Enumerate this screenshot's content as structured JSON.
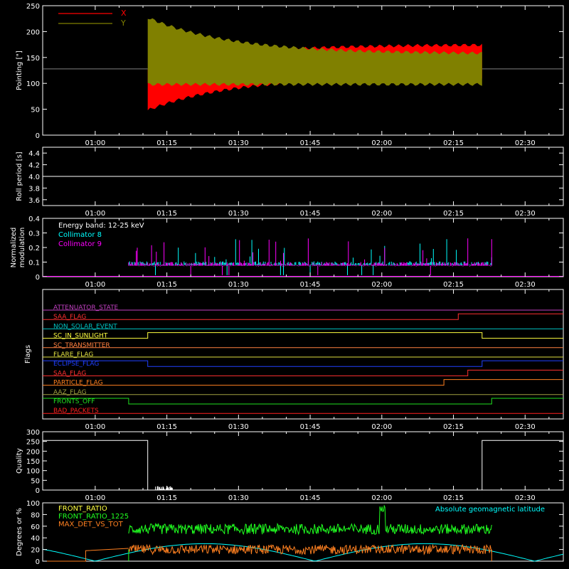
{
  "time_axis": {
    "tick_labels": [
      "01:00",
      "01:15",
      "01:30",
      "01:45",
      "02:00",
      "02:15",
      "02:30"
    ],
    "tick_minutes": [
      60,
      75,
      90,
      105,
      120,
      135,
      150
    ],
    "range_minutes": [
      49,
      158
    ]
  },
  "chart_data": [
    {
      "type": "line",
      "name": "pointing",
      "ylabel": "Pointing [\"]",
      "ylim": [
        0,
        250
      ],
      "yticks": [
        0,
        50,
        100,
        150,
        200,
        250
      ],
      "legend": [
        "X",
        "Y"
      ],
      "legend_colors": [
        "#ff0000",
        "#808000"
      ],
      "baseline": 128,
      "active_minutes": [
        71,
        141
      ],
      "series": [
        {
          "name": "X",
          "color": "#ff0000",
          "envelope_low_start": 45,
          "envelope_low_end": 110,
          "envelope_high_start": 130,
          "envelope_high_end": 178
        },
        {
          "name": "Y",
          "color": "#808000",
          "envelope_low_start": 95,
          "envelope_low_end": 95,
          "envelope_high_start": 230,
          "envelope_high_end": 160
        }
      ]
    },
    {
      "type": "line",
      "name": "roll-period",
      "ylabel": "Roll period [s]",
      "ylim": [
        3.5,
        4.5
      ],
      "yticks": [
        3.6,
        3.8,
        4.0,
        4.2,
        4.4
      ],
      "ytick_labels": [
        "3.6",
        "3.8",
        "4.0",
        "4.2",
        "4.4"
      ],
      "value": 4.0,
      "color": "#ffffff"
    },
    {
      "type": "bar",
      "name": "modulation",
      "ylabel_lines": [
        "Normalized",
        "modulation"
      ],
      "ylim": [
        0,
        0.4
      ],
      "yticks": [
        0,
        0.1,
        0.2,
        0.3,
        0.4
      ],
      "ytick_labels": [
        "0",
        "0.1",
        "0.2",
        "0.3",
        "0.4"
      ],
      "annotation": "Energy band: 12-25 keV",
      "active_minutes": [
        67,
        143
      ],
      "series": [
        {
          "name": "Collimator 8",
          "color": "#00ffff",
          "base": 0.09
        },
        {
          "name": "Collimator 9",
          "color": "#ff00ff",
          "base": 0.085
        }
      ]
    },
    {
      "type": "line",
      "name": "flags",
      "ylabel": "Flags",
      "series": [
        {
          "name": "ATTENUATOR_STATE",
          "color": "#c040c0",
          "steps": []
        },
        {
          "name": "SAA_FLAG",
          "color": "#ff3030",
          "steps": [
            [
              49,
              0
            ],
            [
              136,
              1
            ]
          ]
        },
        {
          "name": "NON_SOLAR_EVENT",
          "color": "#00c0c0",
          "steps": []
        },
        {
          "name": "SC_IN_SUNLIGHT",
          "color": "#ffff40",
          "steps": [
            [
              49,
              0
            ],
            [
              71,
              1
            ],
            [
              141,
              0
            ]
          ]
        },
        {
          "name": "SC_TRANSMITTER",
          "color": "#ff8040",
          "steps": []
        },
        {
          "name": "FLARE_FLAG",
          "color": "#e0e040",
          "steps": []
        },
        {
          "name": "ECLIPSE_FLAG",
          "color": "#2040ff",
          "steps": [
            [
              49,
              1
            ],
            [
              71,
              0
            ],
            [
              141,
              1
            ]
          ]
        },
        {
          "name": "SAA_FLAG",
          "color": "#ff3030",
          "steps": [
            [
              49,
              0
            ],
            [
              138,
              1
            ]
          ]
        },
        {
          "name": "PARTICLE_FLAG",
          "color": "#ff8020",
          "steps": [
            [
              49,
              0
            ],
            [
              133,
              1
            ]
          ]
        },
        {
          "name": "AAZ_FLAG",
          "color": "#a0a040",
          "steps": []
        },
        {
          "name": "FRONTS_OFF",
          "color": "#20e020",
          "steps": [
            [
              49,
              1
            ],
            [
              67,
              0
            ],
            [
              143,
              1
            ]
          ]
        },
        {
          "name": "BAD_PACKETS",
          "color": "#ff2020",
          "steps": []
        }
      ]
    },
    {
      "type": "line",
      "name": "quality",
      "ylabel": "Quality",
      "ylim": [
        0,
        300
      ],
      "yticks": [
        0,
        50,
        100,
        150,
        200,
        250,
        300
      ],
      "color": "#ffffff",
      "segments": [
        [
          49,
          255
        ],
        [
          71,
          255
        ],
        [
          71,
          0
        ],
        [
          141,
          0
        ],
        [
          141,
          255
        ],
        [
          158,
          255
        ]
      ]
    },
    {
      "type": "line",
      "name": "ratios",
      "ylabel": "Degrees or %",
      "ylim": [
        0,
        100
      ],
      "yticks": [
        0,
        20,
        40,
        60,
        80,
        100
      ],
      "right_legend": "Absolute geomagnetic latitude",
      "right_legend_color": "#00ffff",
      "series": [
        {
          "name": "FRONT_RATIO",
          "color": "#ffff40"
        },
        {
          "name": "FRONT_RATIO_1225",
          "color": "#20ff20",
          "level": 55
        },
        {
          "name": "MAX_DET_VS_TOT",
          "color": "#ff8020",
          "level": 20
        }
      ]
    }
  ]
}
